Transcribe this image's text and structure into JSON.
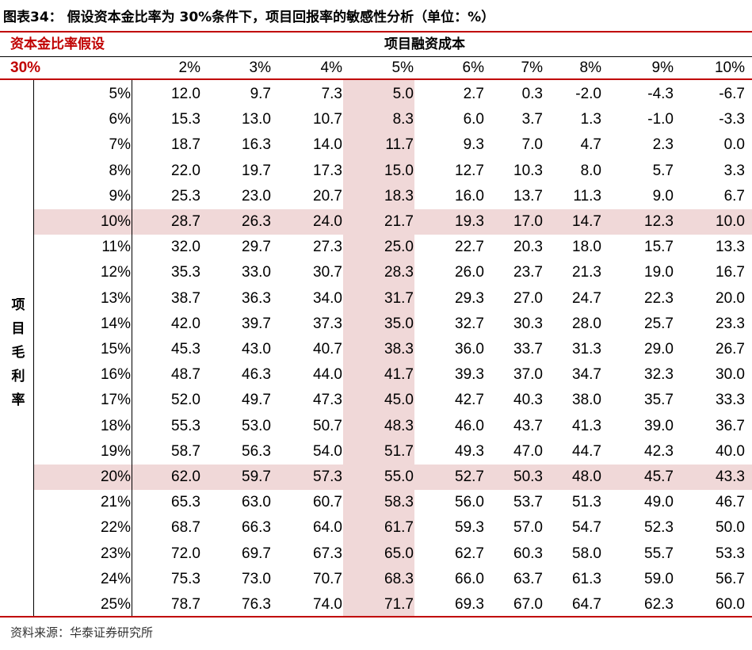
{
  "title": "图表34：  假设资本金比率为 30%条件下，项目回报率的敏感性分析（单位：%）",
  "header": {
    "assumption_label": "资本金比率假设",
    "assumption_value": "30%",
    "cost_label": "项目融资成本"
  },
  "row_axis_label": "项目毛利率",
  "columns": [
    "2%",
    "3%",
    "4%",
    "5%",
    "6%",
    "7%",
    "8%",
    "9%",
    "10%"
  ],
  "rows": [
    {
      "label": "5%",
      "values": [
        "12.0",
        "9.7",
        "7.3",
        "5.0",
        "2.7",
        "0.3",
        "-2.0",
        "-4.3",
        "-6.7"
      ]
    },
    {
      "label": "6%",
      "values": [
        "15.3",
        "13.0",
        "10.7",
        "8.3",
        "6.0",
        "3.7",
        "1.3",
        "-1.0",
        "-3.3"
      ]
    },
    {
      "label": "7%",
      "values": [
        "18.7",
        "16.3",
        "14.0",
        "11.7",
        "9.3",
        "7.0",
        "4.7",
        "2.3",
        "0.0"
      ]
    },
    {
      "label": "8%",
      "values": [
        "22.0",
        "19.7",
        "17.3",
        "15.0",
        "12.7",
        "10.3",
        "8.0",
        "5.7",
        "3.3"
      ]
    },
    {
      "label": "9%",
      "values": [
        "25.3",
        "23.0",
        "20.7",
        "18.3",
        "16.0",
        "13.7",
        "11.3",
        "9.0",
        "6.7"
      ]
    },
    {
      "label": "10%",
      "values": [
        "28.7",
        "26.3",
        "24.0",
        "21.7",
        "19.3",
        "17.0",
        "14.7",
        "12.3",
        "10.0"
      ]
    },
    {
      "label": "11%",
      "values": [
        "32.0",
        "29.7",
        "27.3",
        "25.0",
        "22.7",
        "20.3",
        "18.0",
        "15.7",
        "13.3"
      ]
    },
    {
      "label": "12%",
      "values": [
        "35.3",
        "33.0",
        "30.7",
        "28.3",
        "26.0",
        "23.7",
        "21.3",
        "19.0",
        "16.7"
      ]
    },
    {
      "label": "13%",
      "values": [
        "38.7",
        "36.3",
        "34.0",
        "31.7",
        "29.3",
        "27.0",
        "24.7",
        "22.3",
        "20.0"
      ]
    },
    {
      "label": "14%",
      "values": [
        "42.0",
        "39.7",
        "37.3",
        "35.0",
        "32.7",
        "30.3",
        "28.0",
        "25.7",
        "23.3"
      ]
    },
    {
      "label": "15%",
      "values": [
        "45.3",
        "43.0",
        "40.7",
        "38.3",
        "36.0",
        "33.7",
        "31.3",
        "29.0",
        "26.7"
      ]
    },
    {
      "label": "16%",
      "values": [
        "48.7",
        "46.3",
        "44.0",
        "41.7",
        "39.3",
        "37.0",
        "34.7",
        "32.3",
        "30.0"
      ]
    },
    {
      "label": "17%",
      "values": [
        "52.0",
        "49.7",
        "47.3",
        "45.0",
        "42.7",
        "40.3",
        "38.0",
        "35.7",
        "33.3"
      ]
    },
    {
      "label": "18%",
      "values": [
        "55.3",
        "53.0",
        "50.7",
        "48.3",
        "46.0",
        "43.7",
        "41.3",
        "39.0",
        "36.7"
      ]
    },
    {
      "label": "19%",
      "values": [
        "58.7",
        "56.3",
        "54.0",
        "51.7",
        "49.3",
        "47.0",
        "44.7",
        "42.3",
        "40.0"
      ]
    },
    {
      "label": "20%",
      "values": [
        "62.0",
        "59.7",
        "57.3",
        "55.0",
        "52.7",
        "50.3",
        "48.0",
        "45.7",
        "43.3"
      ]
    },
    {
      "label": "21%",
      "values": [
        "65.3",
        "63.0",
        "60.7",
        "58.3",
        "56.0",
        "53.7",
        "51.3",
        "49.0",
        "46.7"
      ]
    },
    {
      "label": "22%",
      "values": [
        "68.7",
        "66.3",
        "64.0",
        "61.7",
        "59.3",
        "57.0",
        "54.7",
        "52.3",
        "50.0"
      ]
    },
    {
      "label": "23%",
      "values": [
        "72.0",
        "69.7",
        "67.3",
        "65.0",
        "62.7",
        "60.3",
        "58.0",
        "55.7",
        "53.3"
      ]
    },
    {
      "label": "24%",
      "values": [
        "75.3",
        "73.0",
        "70.7",
        "68.3",
        "66.0",
        "63.7",
        "61.3",
        "59.0",
        "56.7"
      ]
    },
    {
      "label": "25%",
      "values": [
        "78.7",
        "76.3",
        "74.0",
        "71.7",
        "69.3",
        "67.0",
        "64.7",
        "62.3",
        "60.0"
      ]
    }
  ],
  "highlight": {
    "row_labels": [
      "10%",
      "20%"
    ],
    "column_label": "5%",
    "color": "#f0d8d8"
  },
  "accent_color": "#c00000",
  "source": "资料来源：华泰证券研究所"
}
